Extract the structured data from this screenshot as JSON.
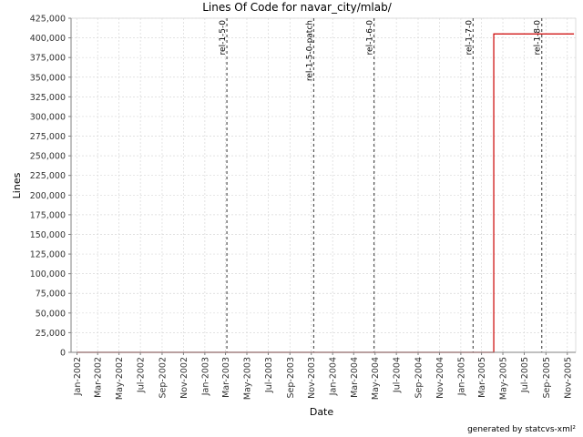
{
  "chart_data": {
    "type": "line",
    "title": "Lines Of Code for navar_city/mlab/",
    "xlabel": "Date",
    "ylabel": "Lines",
    "ylim": [
      0,
      425000
    ],
    "xlim": [
      "2001-12-15",
      "2005-11-25"
    ],
    "y_ticks": [
      0,
      25000,
      50000,
      75000,
      100000,
      125000,
      150000,
      175000,
      200000,
      225000,
      250000,
      275000,
      300000,
      325000,
      350000,
      375000,
      400000,
      425000
    ],
    "y_tick_labels": [
      "0",
      "25,000",
      "50,000",
      "75,000",
      "100,000",
      "125,000",
      "150,000",
      "175,000",
      "200,000",
      "225,000",
      "250,000",
      "275,000",
      "300,000",
      "325,000",
      "350,000",
      "375,000",
      "400,000",
      "425,000"
    ],
    "x_ticks": [
      "2002-01-01",
      "2002-03-01",
      "2002-05-01",
      "2002-07-01",
      "2002-09-01",
      "2002-11-01",
      "2003-01-01",
      "2003-03-01",
      "2003-05-01",
      "2003-07-01",
      "2003-09-01",
      "2003-11-01",
      "2004-01-01",
      "2004-03-01",
      "2004-05-01",
      "2004-07-01",
      "2004-09-01",
      "2004-11-01",
      "2005-01-01",
      "2005-03-01",
      "2005-05-01",
      "2005-07-01",
      "2005-09-01",
      "2005-11-01"
    ],
    "x_tick_labels": [
      "Jan-2002",
      "Mar-2002",
      "May-2002",
      "Jul-2002",
      "Sep-2002",
      "Nov-2002",
      "Jan-2003",
      "Mar-2003",
      "May-2003",
      "Jul-2003",
      "Sep-2003",
      "Nov-2003",
      "Jan-2004",
      "Mar-2004",
      "May-2004",
      "Jul-2004",
      "Sep-2004",
      "Nov-2004",
      "Jan-2005",
      "Mar-2005",
      "May-2005",
      "Jul-2005",
      "Sep-2005",
      "Nov-2005"
    ],
    "grid": true,
    "series": [
      {
        "color": "#cc0000",
        "step": true,
        "points": [
          {
            "x": "2002-01-01",
            "y": 0
          },
          {
            "x": "2005-04-05",
            "y": 0
          },
          {
            "x": "2005-04-05",
            "y": 405000
          },
          {
            "x": "2005-11-20",
            "y": 405000
          }
        ]
      }
    ],
    "markers": [
      {
        "label": "rel-1-5-0",
        "x": "2003-03-05"
      },
      {
        "label": "rel-1-5-0-patch",
        "x": "2003-11-08"
      },
      {
        "label": "rel-1-6-0",
        "x": "2004-04-28"
      },
      {
        "label": "rel-1-7-0",
        "x": "2005-02-05"
      },
      {
        "label": "rel-1-8-0",
        "x": "2005-08-20"
      }
    ],
    "footer": "generated by statcvs-xml²"
  }
}
